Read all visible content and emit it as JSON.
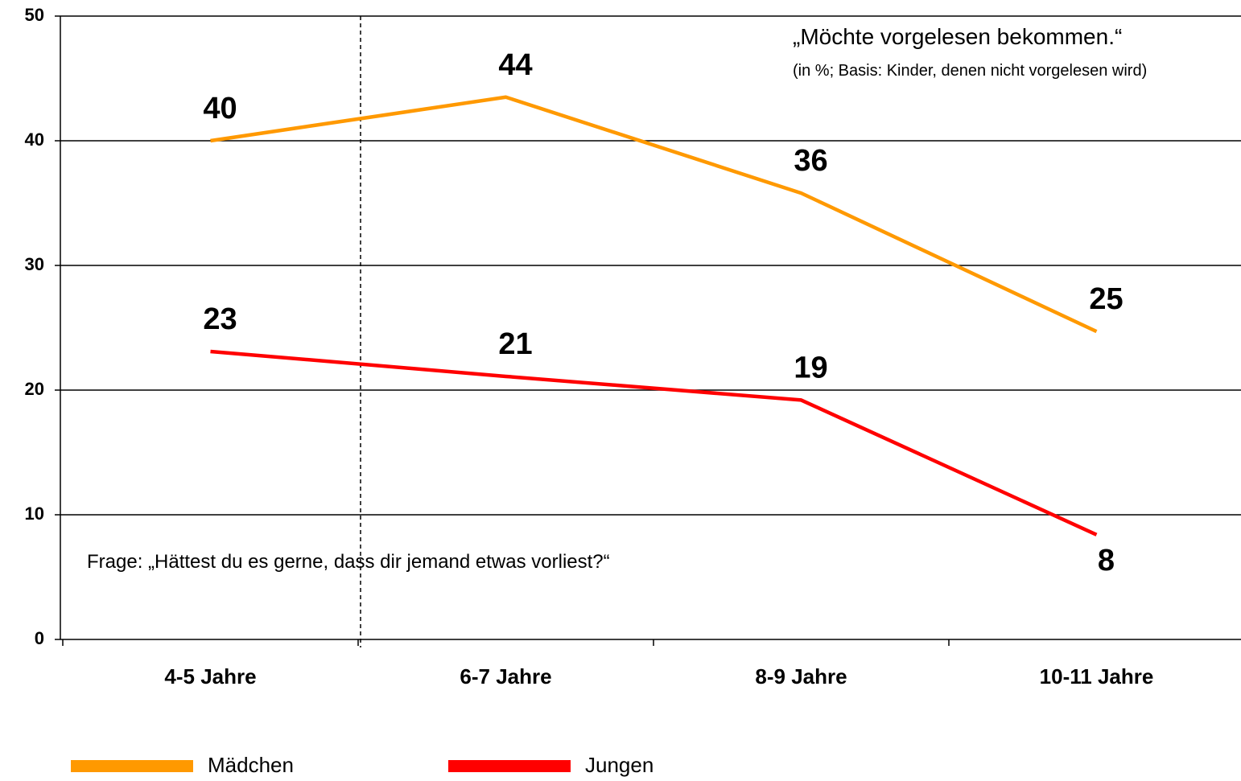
{
  "chart_data": {
    "type": "line",
    "title": "„Möchte vorgelesen bekommen.“",
    "subtitle": "(in %; Basis: Kinder, denen nicht vorgelesen wird)",
    "annotation": "Frage: „Hättest du es gerne, dass dir jemand etwas vorliest?“",
    "categories": [
      "4-5 Jahre",
      "6-7 Jahre",
      "8-9 Jahre",
      "10-11 Jahre"
    ],
    "series": [
      {
        "name": "Mädchen",
        "color": "#ff9900",
        "values": [
          40,
          43.5,
          35.8,
          24.7
        ],
        "value_labels": [
          "40",
          "44",
          "36",
          "25"
        ]
      },
      {
        "name": "Jungen",
        "color": "#ff0000",
        "values": [
          23.1,
          21.1,
          19.2,
          8.4
        ],
        "value_labels": [
          "23",
          "21",
          "19",
          "8"
        ]
      }
    ],
    "ylim": [
      0,
      50
    ],
    "yticks": [
      0,
      10,
      20,
      30,
      40,
      50
    ],
    "grid": true
  }
}
